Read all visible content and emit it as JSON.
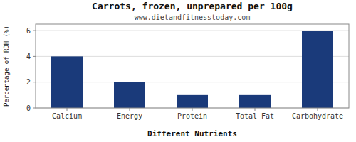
{
  "chart_data": {
    "type": "bar",
    "title": "Carrots, frozen, unprepared per 100g",
    "subtitle": "www.dietandfitnesstoday.com",
    "xlabel": "Different Nutrients",
    "ylabel": "Percentage of RDH (%)",
    "categories": [
      "Calcium",
      "Energy",
      "Protein",
      "Total Fat",
      "Carbohydrate"
    ],
    "values": [
      4.0,
      2.0,
      1.0,
      1.0,
      6.0
    ],
    "color": "#1a3a7a",
    "ylim": [
      0,
      6.5
    ],
    "yticks": [
      0,
      2,
      4,
      6
    ],
    "grid": true
  }
}
